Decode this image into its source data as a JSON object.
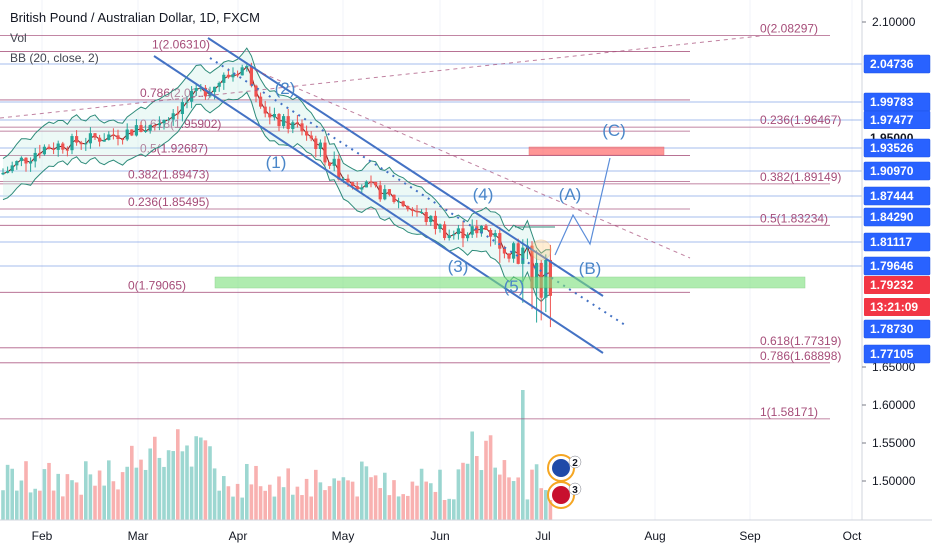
{
  "header": {
    "symbol_title": "British Pound / Australian Dollar, 1D, FXCM",
    "vol_label": "Vol",
    "bb_label": "BB (20, close, 2)"
  },
  "chart_data": {
    "type": "candlestick",
    "title": "British Pound / Australian Dollar, 1D, FXCM",
    "x_ticks": [
      "Feb",
      "Mar",
      "Apr",
      "May",
      "Jun",
      "Jul",
      "Aug",
      "Sep",
      "Oct"
    ],
    "y_ticks": [
      "2.10000",
      "1.65000",
      "1.60000",
      "1.55000",
      "1.50000"
    ],
    "price_badges": [
      {
        "label": "2.04736",
        "value": 2.04736,
        "style": "blue"
      },
      {
        "label": "1.99783",
        "value": 1.99783,
        "style": "blue"
      },
      {
        "label": "1.97477",
        "value": 1.97477,
        "style": "blue"
      },
      {
        "label": "1.95000",
        "value": 1.95,
        "style": "plain"
      },
      {
        "label": "1.93526",
        "value": 1.93526,
        "style": "blue"
      },
      {
        "label": "1.90970",
        "value": 1.9097,
        "style": "blue"
      },
      {
        "label": "1.87444",
        "value": 1.87444,
        "style": "blue"
      },
      {
        "label": "1.84290",
        "value": 1.8429,
        "style": "blue"
      },
      {
        "label": "1.81117",
        "value": 1.81117,
        "style": "blue"
      },
      {
        "label": "1.79646",
        "value": 1.79646,
        "style": "blue"
      },
      {
        "label": "1.79232",
        "value": 1.79232,
        "style": "red"
      },
      {
        "label": "13:21:09",
        "value": 1.79232,
        "style": "red-time"
      },
      {
        "label": "1.78730",
        "value": 1.7873,
        "style": "blue"
      },
      {
        "label": "1.77105",
        "value": 1.77105,
        "style": "blue"
      }
    ],
    "fib_levels": [
      {
        "label": "0(2.08297)",
        "value": 2.08297,
        "side": "right"
      },
      {
        "label": "1(2.06310)",
        "value": 2.0631,
        "side": "left"
      },
      {
        "label": "0.786(2.00...)",
        "value": 2.0005,
        "side": "left"
      },
      {
        "label": "0.236(1.96467)",
        "value": 1.96467,
        "side": "right"
      },
      {
        "label": "0.618(1.95902)",
        "value": 1.95902,
        "side": "left"
      },
      {
        "label": "0.5(1.92687)",
        "value": 1.92687,
        "side": "left"
      },
      {
        "label": "0.382(1.89473)",
        "value": 1.89473,
        "side": "left"
      },
      {
        "label": "0.382(1.89149)",
        "value": 1.89149,
        "side": "right"
      },
      {
        "label": "0.236(1.85495)",
        "value": 1.85495,
        "side": "left"
      },
      {
        "label": "0.5(1.83234)",
        "value": 1.83234,
        "side": "right"
      },
      {
        "label": "0(1.79065)",
        "value": 1.79065,
        "side": "left"
      },
      {
        "label": "0.618(1.77319)",
        "value": 1.77319,
        "side": "right"
      },
      {
        "label": "0.786(1.68898)",
        "value": 1.68898,
        "side": "right"
      },
      {
        "label": "1(1.58171)",
        "value": 1.58171,
        "side": "right"
      }
    ],
    "wave_labels": [
      "(1)",
      "(2)",
      "(3)",
      "(4)",
      "(5)",
      "(A)",
      "(B)",
      "(C)"
    ],
    "event_badges": [
      "2",
      "3"
    ],
    "colors": {
      "up": "#26a69a",
      "down": "#ef5350",
      "bands": "#2e8b7a",
      "channel": "#4472c4",
      "fib": "#a64d79",
      "zone_green": "#7be07b",
      "zone_red": "#ff6b6b",
      "badge_blue": "#2962ff",
      "badge_red": "#f23645"
    }
  }
}
